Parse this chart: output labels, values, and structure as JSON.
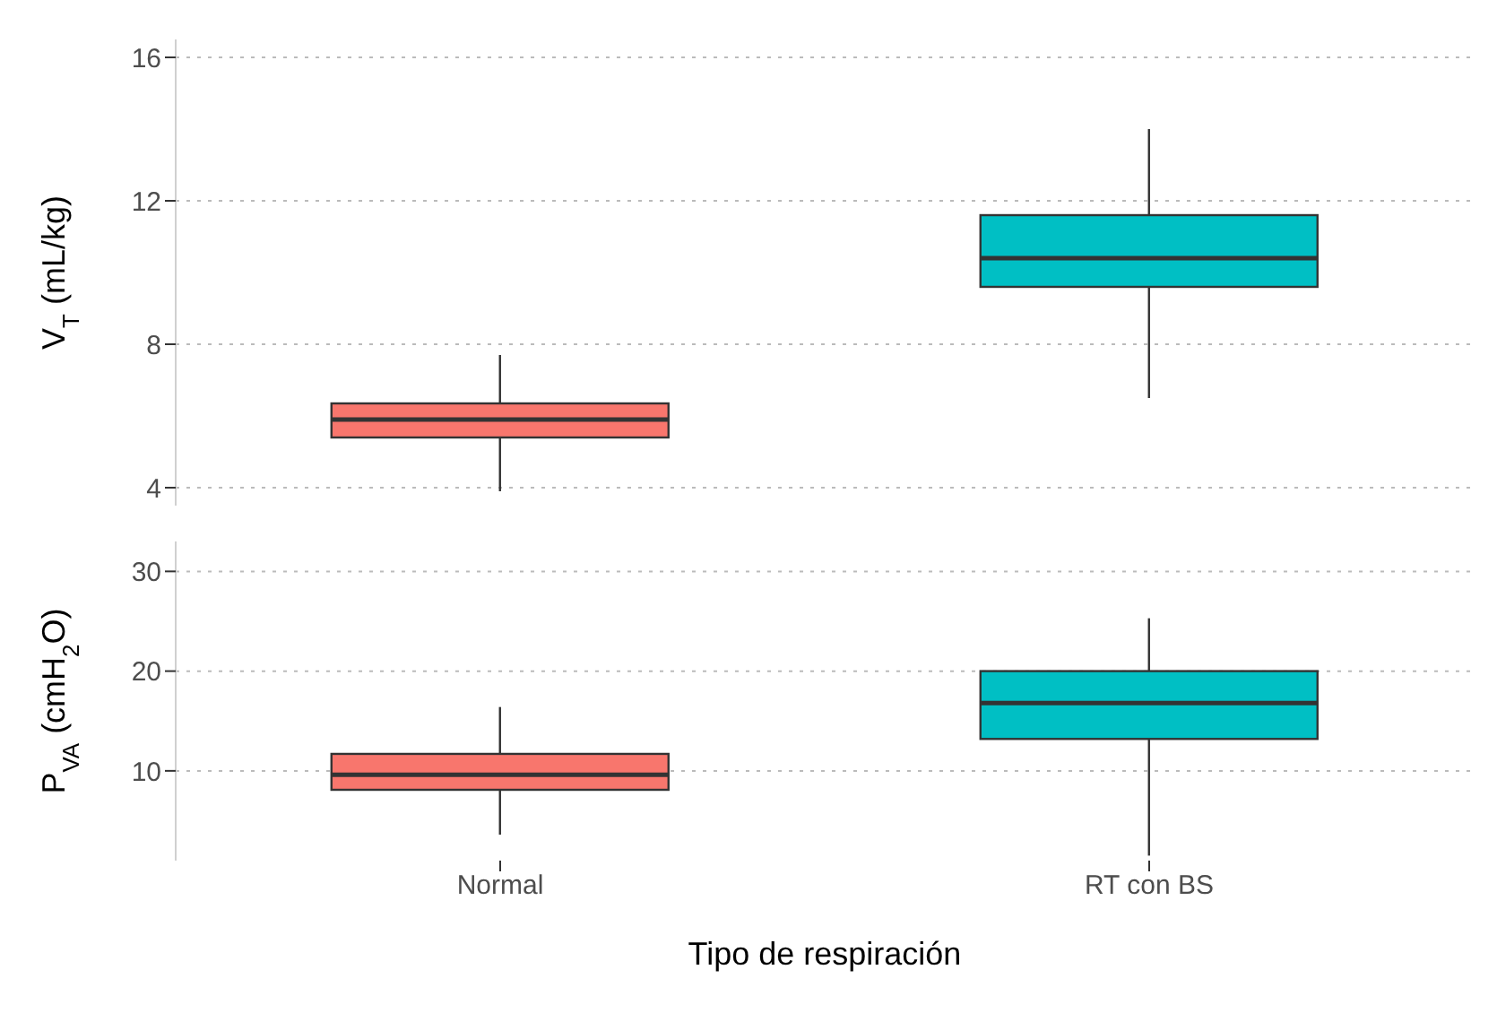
{
  "chart_data": [
    {
      "type": "box",
      "ylabel": "V$_{T}$ (mL/kg)",
      "colors": [
        "#f8766d",
        "#00bfc4"
      ],
      "boxes": [
        {
          "low": 3.9,
          "q1": 5.4,
          "median": 5.9,
          "q3": 6.35,
          "high": 7.7
        },
        {
          "low": 6.5,
          "q1": 9.6,
          "median": 10.4,
          "q3": 11.6,
          "high": 14
        }
      ],
      "ylim": [
        3.5,
        16.5
      ],
      "yticks": [
        4,
        8,
        12,
        16
      ],
      "grid": "y",
      "tick_labels": "y"
    },
    {
      "type": "box",
      "xlabel": "Tipo de respiración",
      "ylabel": "P$_{VA}$ (cmH$_{2}$O)",
      "categories": [
        "Normal",
        "RT con BS"
      ],
      "colors": [
        "#f8766d",
        "#00bfc4"
      ],
      "boxes": [
        {
          "low": 3.6,
          "q1": 8.1,
          "median": 9.6,
          "q3": 11.7,
          "high": 16.4
        },
        {
          "low": 1.5,
          "q1": 13.2,
          "median": 16.8,
          "q3": 20,
          "high": 25.3
        }
      ],
      "ylim": [
        1,
        33
      ],
      "yticks": [
        10,
        20,
        30
      ],
      "grid": "y"
    }
  ]
}
